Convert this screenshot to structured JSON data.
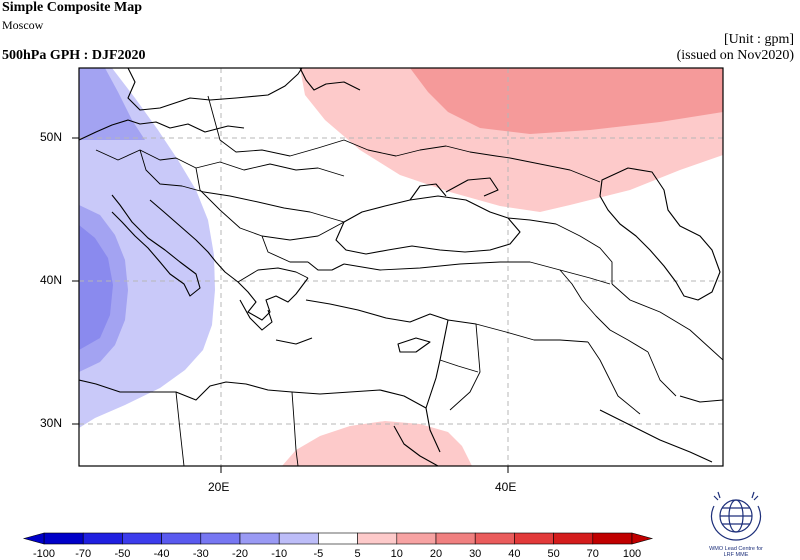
{
  "header": {
    "title": "Simple Composite Map",
    "station": "Moscow",
    "field": "500hPa GPH : DJF2020",
    "unit": "[Unit : gpm]",
    "issued": "(issued on Nov2020)"
  },
  "map": {
    "lat_labels": [
      "50N",
      "40N",
      "30N"
    ],
    "lon_labels": [
      "20E",
      "40E"
    ],
    "anomaly_regions": [
      {
        "name": "western-negative-outer",
        "level": "-10 to -5",
        "color": "#c9c9f9"
      },
      {
        "name": "western-negative-mid",
        "level": "-20 to -10",
        "color": "#a3a3f2"
      },
      {
        "name": "western-negative-core",
        "level": "-30 to -20",
        "color": "#8a8aee"
      },
      {
        "name": "northeast-positive-outer",
        "level": "5 to 10",
        "color": "#fdcaca"
      },
      {
        "name": "northeast-positive-core",
        "level": "10 to 20",
        "color": "#f59a9a"
      },
      {
        "name": "southern-positive",
        "level": "5 to 10",
        "color": "#fdcaca"
      }
    ]
  },
  "colorbar": {
    "labels": [
      "-100",
      "-70",
      "-50",
      "-40",
      "-30",
      "-20",
      "-10",
      "-5",
      "5",
      "10",
      "20",
      "30",
      "40",
      "50",
      "70",
      "100"
    ],
    "colors": [
      "#0000c8",
      "#1f1fe0",
      "#3c3cec",
      "#5a5aef",
      "#7777f2",
      "#9a9af4",
      "#bdbdf8",
      "#ffffff",
      "#fdcaca",
      "#f7a3a3",
      "#f08080",
      "#ea5c5c",
      "#e23a3a",
      "#d41c1c",
      "#c00000"
    ]
  },
  "logo": {
    "text_line1": "WMO Lead Centre for",
    "text_line2": "LRF MME"
  }
}
